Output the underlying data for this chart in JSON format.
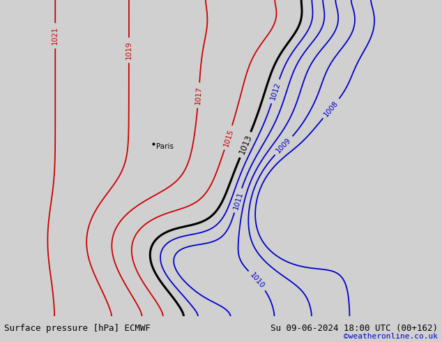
{
  "title_left": "Surface pressure [hPa] ECMWF",
  "title_right": "Su 09-06-2024 18:00 UTC (00+162)",
  "title_right2": "©weatheronline.co.uk",
  "bg_color": "#d0d0d0",
  "land_green": "#b5e29a",
  "sea_color": "#cecece",
  "contour_red": "#cc0000",
  "contour_blue": "#0000cc",
  "contour_black": "#000000",
  "paris_label": "Paris",
  "paris_lon": 2.35,
  "paris_lat": 48.85,
  "figsize": [
    6.34,
    4.9
  ],
  "dpi": 100,
  "lon_min": -15.0,
  "lon_max": 35.0,
  "lat_min": 33.0,
  "lat_max": 62.0
}
